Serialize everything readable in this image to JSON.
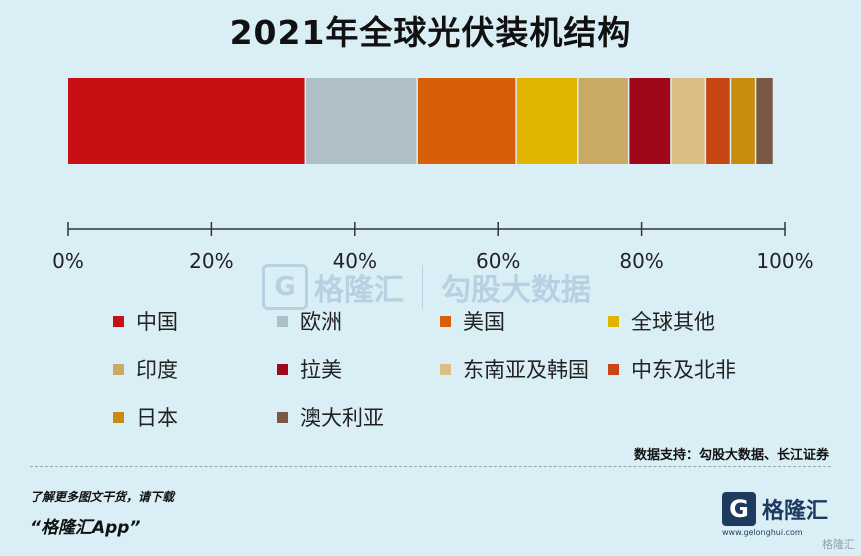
{
  "title": "2021年全球光伏装机结构",
  "colors": {
    "background": "#daeef6",
    "axis": "#333333"
  },
  "chart_data": {
    "type": "bar",
    "orientation": "horizontal-stacked-100",
    "title": "2021年全球光伏装机结构",
    "x_ticks": [
      "0%",
      "20%",
      "40%",
      "60%",
      "80%",
      "100%"
    ],
    "xlim": [
      0,
      100
    ],
    "legend_position": "bottom",
    "series": [
      {
        "name": "中国",
        "value": 33.2,
        "color": "#c80f14"
      },
      {
        "name": "欧洲",
        "value": 15.6,
        "color": "#aebfc8"
      },
      {
        "name": "美国",
        "value": 13.8,
        "color": "#d75f0a"
      },
      {
        "name": "全球其他",
        "value": 8.6,
        "color": "#e0b400"
      },
      {
        "name": "印度",
        "value": 7.1,
        "color": "#c8aa64"
      },
      {
        "name": "拉美",
        "value": 5.9,
        "color": "#a0081a"
      },
      {
        "name": "东南亚及韩国",
        "value": 4.8,
        "color": "#dcbe82"
      },
      {
        "name": "中东及北非",
        "value": 3.5,
        "color": "#c84614"
      },
      {
        "name": "日本",
        "value": 3.5,
        "color": "#c88c0a"
      },
      {
        "name": "澳大利亚",
        "value": 2.5,
        "color": "#7a5846"
      }
    ]
  },
  "source": "数据支持：勾股大数据、长江证券",
  "promo": {
    "line1": "了解更多图文干货，请下载",
    "line2": "“格隆汇App”"
  },
  "logo": {
    "mark": "G",
    "name": "格隆汇",
    "url": "www.gelonghui.com"
  },
  "watermark": {
    "brand1": "格隆汇",
    "brand2": "勾股大数据",
    "corner": "格隆汇"
  }
}
